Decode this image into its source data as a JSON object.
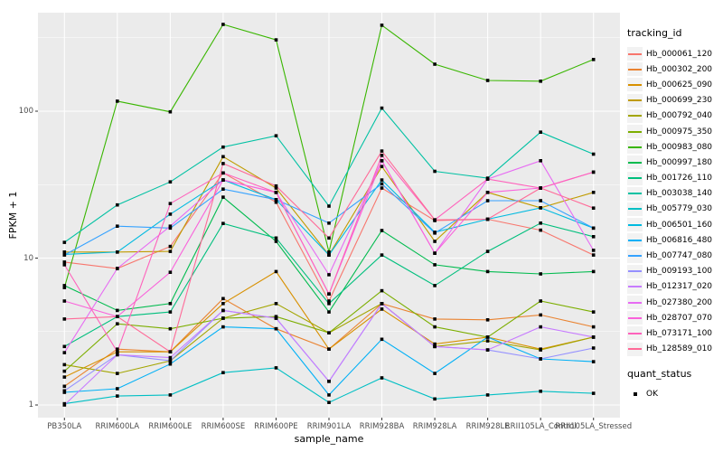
{
  "chart_data": {
    "type": "line",
    "title": "",
    "xlabel": "sample_name",
    "ylabel": "FPKM + 1",
    "y_scale": "log10",
    "y_ticks": [
      1,
      10,
      100
    ],
    "y_minor_ticks": [
      3.1623,
      31.623,
      316.23
    ],
    "ylim": [
      0.82,
      470
    ],
    "grid": true,
    "panel_bg": "#EBEBEB",
    "grid_color": "#FFFFFF",
    "point_color": "#000000",
    "tick_color": "#333333",
    "tick_label_color": "#4D4D4D",
    "legend_position": "right",
    "categories": [
      "PB350LA",
      "RRIM600LA",
      "RRIM600LE",
      "RRIM600SE",
      "RRIM600PE",
      "RRIM901LA",
      "RRIM928BA",
      "RRIM928LA",
      "RRIM928LE",
      "RRII105LA_Control",
      "RRII105LA_Stressed"
    ],
    "legend": {
      "tracking_title": "tracking_id",
      "quant_title": "quant_status",
      "quant_items": [
        {
          "label": "OK",
          "marker": "black-square"
        }
      ]
    },
    "series": [
      {
        "name": "Hb_000061_120",
        "color": "#F8766D",
        "values": [
          9.4,
          8.5,
          12.0,
          38,
          24,
          5.1,
          30,
          18.0,
          18.4,
          15.5,
          10.5
        ]
      },
      {
        "name": "Hb_000302_200",
        "color": "#EA8331",
        "values": [
          1.34,
          2.4,
          2.3,
          5.3,
          3.3,
          2.4,
          4.9,
          3.85,
          3.8,
          4.1,
          3.4
        ]
      },
      {
        "name": "Hb_000625_090",
        "color": "#D89000",
        "values": [
          1.55,
          2.3,
          2.3,
          4.9,
          8.1,
          2.4,
          4.5,
          2.6,
          2.9,
          2.4,
          2.9
        ]
      },
      {
        "name": "Hb_000699_230",
        "color": "#C09B00",
        "values": [
          11.0,
          11.0,
          11.1,
          49,
          30,
          10.5,
          42,
          13.0,
          28,
          22,
          28
        ]
      },
      {
        "name": "Hb_000792_040",
        "color": "#A3A500",
        "values": [
          1.88,
          1.64,
          2.0,
          3.9,
          4.9,
          3.1,
          4.9,
          2.5,
          2.73,
          2.37,
          2.9
        ]
      },
      {
        "name": "Hb_000975_350",
        "color": "#7CAE00",
        "values": [
          1.7,
          3.57,
          3.3,
          3.9,
          4.0,
          3.1,
          6.0,
          3.4,
          2.9,
          5.1,
          4.3
        ]
      },
      {
        "name": "Hb_000983_080",
        "color": "#39B600",
        "values": [
          6.3,
          117,
          99,
          390,
          306,
          11.0,
          385,
          209,
          162,
          160,
          225
        ]
      },
      {
        "name": "Hb_000997_180",
        "color": "#00BB4E",
        "values": [
          6.5,
          4.4,
          4.9,
          26,
          13.0,
          4.3,
          15.4,
          9.0,
          8.1,
          7.8,
          8.1
        ]
      },
      {
        "name": "Hb_001726_110",
        "color": "#00BF7D",
        "values": [
          2.5,
          4.0,
          4.3,
          17.2,
          13.7,
          4.9,
          10.5,
          6.5,
          11.1,
          17.3,
          14.0
        ]
      },
      {
        "name": "Hb_003038_140",
        "color": "#00C1A3",
        "values": [
          12.8,
          23,
          33,
          57,
          68,
          22.6,
          105,
          39,
          35,
          72,
          51
        ]
      },
      {
        "name": "Hb_005779_030",
        "color": "#00BFC4",
        "values": [
          1.02,
          1.15,
          1.17,
          1.66,
          1.79,
          1.04,
          1.53,
          1.1,
          1.17,
          1.24,
          1.2
        ]
      },
      {
        "name": "Hb_006501_160",
        "color": "#00BAE0",
        "values": [
          10.6,
          11.0,
          19.9,
          34,
          25,
          10.5,
          34,
          15.0,
          18.4,
          22,
          16.0
        ]
      },
      {
        "name": "Hb_006816_480",
        "color": "#00B0F6",
        "values": [
          1.22,
          1.29,
          1.9,
          3.4,
          3.3,
          1.17,
          2.8,
          1.64,
          2.9,
          2.06,
          1.97
        ]
      },
      {
        "name": "Hb_007747_080",
        "color": "#35A2FF",
        "values": [
          10.5,
          16.5,
          16.0,
          29.5,
          25,
          17.3,
          32,
          14.8,
          24.6,
          24.6,
          16.0
        ]
      },
      {
        "name": "Hb_009193_100",
        "color": "#9590FF",
        "values": [
          1.25,
          2.2,
          2.0,
          4.4,
          3.9,
          1.45,
          4.9,
          2.5,
          2.37,
          2.06,
          2.44
        ]
      },
      {
        "name": "Hb_012317_020",
        "color": "#C77CFF",
        "values": [
          1.0,
          2.2,
          2.1,
          4.4,
          3.9,
          1.45,
          4.9,
          2.5,
          2.37,
          3.4,
          2.9
        ]
      },
      {
        "name": "Hb_027380_200",
        "color": "#E76BF3",
        "values": [
          2.27,
          8.5,
          16.5,
          34,
          28,
          7.7,
          46,
          10.8,
          34.5,
          46,
          11.3
        ]
      },
      {
        "name": "Hb_028707_070",
        "color": "#FA62DB",
        "values": [
          5.1,
          4.0,
          8.0,
          34,
          28,
          5.7,
          46,
          10.8,
          28,
          30,
          38.5
        ]
      },
      {
        "name": "Hb_073171_100",
        "color": "#FF62BC",
        "values": [
          9.0,
          2.3,
          23.5,
          38,
          28,
          5.7,
          50,
          18.2,
          34.5,
          30,
          38.5
        ]
      },
      {
        "name": "Hb_128589_010",
        "color": "#FF6A98",
        "values": [
          3.85,
          4.0,
          2.3,
          44,
          31,
          13.7,
          53.5,
          18.2,
          18.4,
          30,
          21.9
        ]
      }
    ]
  }
}
